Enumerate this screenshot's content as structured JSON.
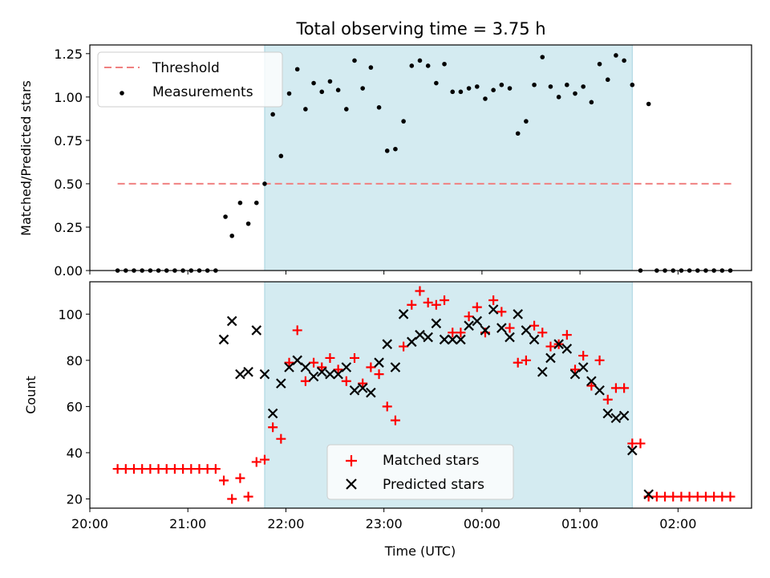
{
  "chart_data": [
    {
      "type": "scatter",
      "title": "Total observing time = 3.75 h",
      "ylabel": "Matched/Predicted stars",
      "xlabel": "",
      "xlim": [
        "20:00",
        "02:45"
      ],
      "ylim": [
        0,
        1.3
      ],
      "yticks": [
        0.0,
        0.25,
        0.5,
        0.75,
        1.0,
        1.25
      ],
      "ytick_labels": [
        "0.00",
        "0.25",
        "0.50",
        "0.75",
        "1.00",
        "1.25"
      ],
      "legend_position": "top-left",
      "shaded_interval": {
        "start": "21:47",
        "end": "01:32",
        "color": "#d4ebf1"
      },
      "threshold": {
        "name": "Threshold",
        "value": 0.5,
        "x_start": "20:17",
        "x_end": "02:35",
        "color": "#f08080"
      },
      "series": [
        {
          "name": "Measurements",
          "marker": "dot",
          "color": "#000000",
          "points": [
            [
              "20:17",
              0.0
            ],
            [
              "20:22",
              0.0
            ],
            [
              "20:27",
              0.0
            ],
            [
              "20:32",
              0.0
            ],
            [
              "20:37",
              0.0
            ],
            [
              "20:42",
              0.0
            ],
            [
              "20:47",
              0.0
            ],
            [
              "20:52",
              0.0
            ],
            [
              "20:57",
              0.0
            ],
            [
              "21:02",
              0.0
            ],
            [
              "21:07",
              0.0
            ],
            [
              "21:12",
              0.0
            ],
            [
              "21:17",
              0.0
            ],
            [
              "21:23",
              0.31
            ],
            [
              "21:27",
              0.2
            ],
            [
              "21:32",
              0.39
            ],
            [
              "21:37",
              0.27
            ],
            [
              "21:42",
              0.39
            ],
            [
              "21:47",
              0.5
            ],
            [
              "21:52",
              0.9
            ],
            [
              "21:57",
              0.66
            ],
            [
              "22:02",
              1.02
            ],
            [
              "22:07",
              1.16
            ],
            [
              "22:12",
              0.93
            ],
            [
              "22:17",
              1.08
            ],
            [
              "22:22",
              1.03
            ],
            [
              "22:27",
              1.09
            ],
            [
              "22:32",
              1.04
            ],
            [
              "22:37",
              0.93
            ],
            [
              "22:42",
              1.21
            ],
            [
              "22:47",
              1.05
            ],
            [
              "22:52",
              1.17
            ],
            [
              "22:57",
              0.94
            ],
            [
              "23:02",
              0.69
            ],
            [
              "23:07",
              0.7
            ],
            [
              "23:12",
              0.86
            ],
            [
              "23:17",
              1.18
            ],
            [
              "23:22",
              1.21
            ],
            [
              "23:27",
              1.18
            ],
            [
              "23:32",
              1.08
            ],
            [
              "23:37",
              1.19
            ],
            [
              "23:42",
              1.03
            ],
            [
              "23:47",
              1.03
            ],
            [
              "23:52",
              1.05
            ],
            [
              "23:57",
              1.06
            ],
            [
              "00:02",
              0.99
            ],
            [
              "00:07",
              1.04
            ],
            [
              "00:12",
              1.07
            ],
            [
              "00:17",
              1.05
            ],
            [
              "00:22",
              0.79
            ],
            [
              "00:27",
              0.86
            ],
            [
              "00:32",
              1.07
            ],
            [
              "00:37",
              1.23
            ],
            [
              "00:42",
              1.06
            ],
            [
              "00:47",
              1.0
            ],
            [
              "00:52",
              1.07
            ],
            [
              "00:57",
              1.02
            ],
            [
              "01:02",
              1.06
            ],
            [
              "01:07",
              0.97
            ],
            [
              "01:12",
              1.19
            ],
            [
              "01:17",
              1.1
            ],
            [
              "01:22",
              1.24
            ],
            [
              "01:27",
              1.21
            ],
            [
              "01:32",
              1.07
            ],
            [
              "01:37",
              0.0
            ],
            [
              "01:42",
              0.96
            ],
            [
              "01:47",
              0.0
            ],
            [
              "01:52",
              0.0
            ],
            [
              "01:57",
              0.0
            ],
            [
              "02:02",
              0.0
            ],
            [
              "02:07",
              0.0
            ],
            [
              "02:12",
              0.0
            ],
            [
              "02:17",
              0.0
            ],
            [
              "02:22",
              0.0
            ],
            [
              "02:27",
              0.0
            ],
            [
              "02:32",
              0.0
            ]
          ]
        }
      ]
    },
    {
      "type": "scatter",
      "title": "",
      "xlabel": "Time (UTC)",
      "ylabel": "Count",
      "xlim": [
        "20:00",
        "02:45"
      ],
      "ylim": [
        16,
        114
      ],
      "yticks": [
        20,
        40,
        60,
        80,
        100
      ],
      "xtick_labels": [
        "20:00",
        "21:00",
        "22:00",
        "23:00",
        "00:00",
        "01:00",
        "02:00"
      ],
      "legend_position": "bottom-center",
      "shaded_interval": {
        "start": "21:47",
        "end": "01:32",
        "color": "#d4ebf1"
      },
      "series": [
        {
          "name": "Matched stars",
          "marker": "plus",
          "color": "#ff0000",
          "points": [
            [
              "20:17",
              33
            ],
            [
              "20:22",
              33
            ],
            [
              "20:27",
              33
            ],
            [
              "20:32",
              33
            ],
            [
              "20:37",
              33
            ],
            [
              "20:42",
              33
            ],
            [
              "20:47",
              33
            ],
            [
              "20:52",
              33
            ],
            [
              "20:57",
              33
            ],
            [
              "21:02",
              33
            ],
            [
              "21:07",
              33
            ],
            [
              "21:12",
              33
            ],
            [
              "21:17",
              33
            ],
            [
              "21:22",
              28
            ],
            [
              "21:27",
              20
            ],
            [
              "21:32",
              29
            ],
            [
              "21:37",
              21
            ],
            [
              "21:42",
              36
            ],
            [
              "21:47",
              37
            ],
            [
              "21:52",
              51
            ],
            [
              "21:57",
              46
            ],
            [
              "22:02",
              79
            ],
            [
              "22:07",
              93
            ],
            [
              "22:12",
              71
            ],
            [
              "22:17",
              79
            ],
            [
              "22:22",
              77
            ],
            [
              "22:27",
              81
            ],
            [
              "22:32",
              76
            ],
            [
              "22:37",
              71
            ],
            [
              "22:42",
              81
            ],
            [
              "22:47",
              70
            ],
            [
              "22:52",
              77
            ],
            [
              "22:57",
              74
            ],
            [
              "23:02",
              60
            ],
            [
              "23:07",
              54
            ],
            [
              "23:12",
              86
            ],
            [
              "23:17",
              104
            ],
            [
              "23:22",
              110
            ],
            [
              "23:27",
              105
            ],
            [
              "23:32",
              104
            ],
            [
              "23:37",
              106
            ],
            [
              "23:42",
              92
            ],
            [
              "23:47",
              92
            ],
            [
              "23:52",
              99
            ],
            [
              "23:57",
              103
            ],
            [
              "00:02",
              92
            ],
            [
              "00:07",
              106
            ],
            [
              "00:12",
              101
            ],
            [
              "00:17",
              94
            ],
            [
              "00:22",
              79
            ],
            [
              "00:27",
              80
            ],
            [
              "00:32",
              95
            ],
            [
              "00:37",
              92
            ],
            [
              "00:42",
              86
            ],
            [
              "00:47",
              87
            ],
            [
              "00:52",
              91
            ],
            [
              "00:57",
              76
            ],
            [
              "01:02",
              82
            ],
            [
              "01:07",
              69
            ],
            [
              "01:12",
              80
            ],
            [
              "01:17",
              63
            ],
            [
              "01:22",
              68
            ],
            [
              "01:27",
              68
            ],
            [
              "01:32",
              44
            ],
            [
              "01:37",
              44
            ],
            [
              "01:42",
              21
            ],
            [
              "01:47",
              21
            ],
            [
              "01:52",
              21
            ],
            [
              "01:57",
              21
            ],
            [
              "02:02",
              21
            ],
            [
              "02:07",
              21
            ],
            [
              "02:12",
              21
            ],
            [
              "02:17",
              21
            ],
            [
              "02:22",
              21
            ],
            [
              "02:27",
              21
            ],
            [
              "02:32",
              21
            ]
          ]
        },
        {
          "name": "Predicted stars",
          "marker": "x",
          "color": "#000000",
          "points": [
            [
              "21:22",
              89
            ],
            [
              "21:27",
              97
            ],
            [
              "21:32",
              74
            ],
            [
              "21:37",
              75
            ],
            [
              "21:42",
              93
            ],
            [
              "21:47",
              74
            ],
            [
              "21:52",
              57
            ],
            [
              "21:57",
              70
            ],
            [
              "22:02",
              77
            ],
            [
              "22:07",
              80
            ],
            [
              "22:12",
              77
            ],
            [
              "22:17",
              73
            ],
            [
              "22:22",
              75
            ],
            [
              "22:27",
              74
            ],
            [
              "22:32",
              74
            ],
            [
              "22:37",
              77
            ],
            [
              "22:42",
              67
            ],
            [
              "22:47",
              68
            ],
            [
              "22:52",
              66
            ],
            [
              "22:57",
              79
            ],
            [
              "23:02",
              87
            ],
            [
              "23:07",
              77
            ],
            [
              "23:12",
              100
            ],
            [
              "23:17",
              88
            ],
            [
              "23:22",
              91
            ],
            [
              "23:27",
              90
            ],
            [
              "23:32",
              96
            ],
            [
              "23:37",
              89
            ],
            [
              "23:42",
              89
            ],
            [
              "23:47",
              89
            ],
            [
              "23:52",
              95
            ],
            [
              "23:57",
              97
            ],
            [
              "00:02",
              93
            ],
            [
              "00:07",
              102
            ],
            [
              "00:12",
              94
            ],
            [
              "00:17",
              90
            ],
            [
              "00:22",
              100
            ],
            [
              "00:27",
              93
            ],
            [
              "00:32",
              89
            ],
            [
              "00:37",
              75
            ],
            [
              "00:42",
              81
            ],
            [
              "00:47",
              87
            ],
            [
              "00:52",
              85
            ],
            [
              "00:57",
              74
            ],
            [
              "01:02",
              77
            ],
            [
              "01:07",
              71
            ],
            [
              "01:12",
              67
            ],
            [
              "01:17",
              57
            ],
            [
              "01:22",
              55
            ],
            [
              "01:27",
              56
            ],
            [
              "01:32",
              41
            ],
            [
              "01:42",
              22
            ]
          ]
        }
      ]
    }
  ]
}
